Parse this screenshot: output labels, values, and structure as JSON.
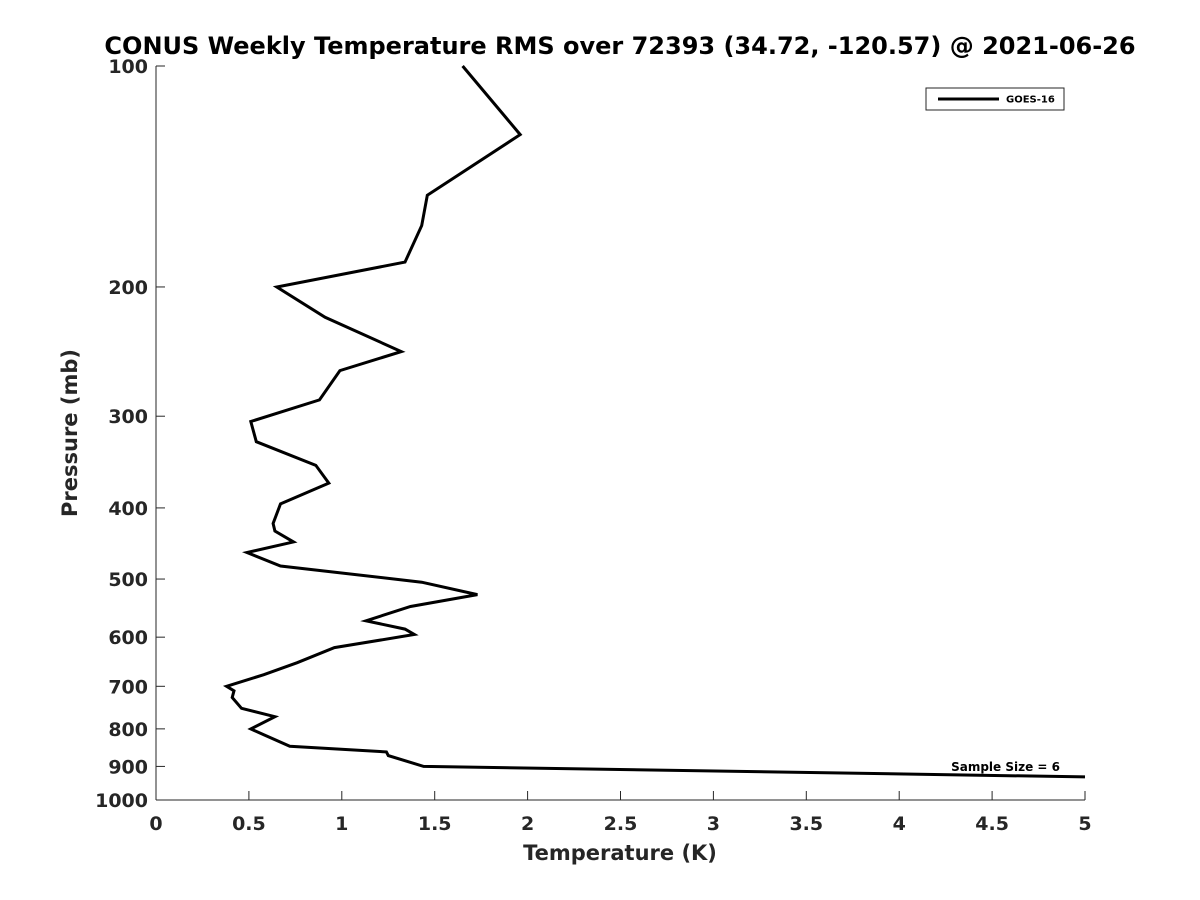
{
  "chart_data": {
    "type": "line",
    "title": "CONUS Weekly Temperature RMS over 72393 (34.72, -120.57) @ 2021-06-26",
    "xlabel": "Temperature (K)",
    "ylabel": "Pressure (mb)",
    "xlim": [
      0,
      5
    ],
    "ylim": [
      100,
      1000
    ],
    "y_scale": "log",
    "y_reversed": true,
    "x_ticks": [
      0,
      0.5,
      1,
      1.5,
      2,
      2.5,
      3,
      3.5,
      4,
      4.5,
      5
    ],
    "x_tick_labels": [
      "0",
      "0.5",
      "1",
      "1.5",
      "2",
      "2.5",
      "3",
      "3.5",
      "4",
      "4.5",
      "5"
    ],
    "y_ticks": [
      100,
      200,
      300,
      400,
      500,
      600,
      700,
      800,
      900,
      1000
    ],
    "y_tick_labels": [
      "100",
      "200",
      "300",
      "400",
      "500",
      "600",
      "700",
      "800",
      "900",
      "1000"
    ],
    "grid": false,
    "legend_position": "top-right",
    "annotation": "Sample Size = 6",
    "line_color": "#000000",
    "series": [
      {
        "name": "GOES-16",
        "x": [
          1.65,
          1.96,
          1.46,
          1.43,
          1.34,
          0.65,
          0.91,
          1.32,
          0.99,
          0.88,
          0.51,
          0.54,
          0.86,
          0.93,
          0.67,
          0.63,
          0.64,
          0.74,
          0.49,
          0.67,
          1.43,
          1.73,
          1.37,
          1.13,
          1.34,
          1.39,
          0.96,
          0.76,
          0.58,
          0.38,
          0.42,
          0.41,
          0.46,
          0.64,
          0.51,
          0.58,
          0.72,
          1.24,
          1.25,
          1.44,
          5.0
        ],
        "y": [
          100,
          124,
          150,
          165,
          185,
          200,
          220,
          245,
          260,
          285,
          305,
          325,
          350,
          370,
          395,
          420,
          430,
          445,
          460,
          480,
          505,
          525,
          545,
          570,
          585,
          595,
          620,
          650,
          675,
          700,
          710,
          725,
          750,
          770,
          800,
          815,
          845,
          860,
          870,
          900,
          930
        ]
      }
    ]
  }
}
